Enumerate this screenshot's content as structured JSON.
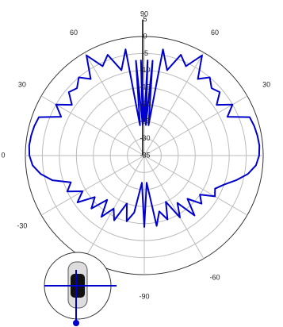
{
  "chart_data": {
    "type": "polar",
    "x": [
      -90,
      -85,
      -80,
      -75,
      -70,
      -65,
      -60,
      -55,
      -50,
      -45,
      -40,
      -35,
      -30,
      -25,
      -20,
      -15,
      -10,
      -5,
      0,
      5,
      10,
      15,
      20,
      25,
      30,
      35,
      40,
      45,
      50,
      55,
      60,
      65,
      70,
      75,
      80,
      82,
      85,
      87,
      88,
      90,
      92,
      93,
      95,
      98,
      100,
      105,
      110,
      115,
      120,
      125,
      130,
      135,
      140,
      145,
      150,
      155,
      160,
      165,
      170,
      175,
      180,
      185,
      190,
      195,
      200,
      205,
      210,
      215,
      220,
      225,
      230,
      235,
      240,
      245,
      250,
      255,
      260,
      265,
      270
    ],
    "series": [
      {
        "color": "#0000cc",
        "values": [
          -14,
          -27,
          -18,
          -15,
          -20,
          -14,
          -17,
          -13,
          -18,
          -13,
          -16,
          -11,
          -14,
          -10,
          -12,
          -7,
          -4,
          -2,
          -1.2,
          -1,
          -1.2,
          -1.5,
          -2,
          -8,
          -5,
          -9,
          -6,
          -7,
          -5,
          -7.5,
          -1,
          -6,
          -3.5,
          -9,
          -3.3,
          -26,
          -7,
          -26,
          -7,
          -25,
          -7,
          -26,
          -7,
          -26,
          -3.3,
          -9,
          -3.5,
          -6,
          -1,
          -7.5,
          -5,
          -7,
          -6,
          -9,
          -5,
          -8,
          -2,
          -1.5,
          -1.2,
          -1,
          -1.2,
          -2,
          -4,
          -7,
          -10,
          -12,
          -11,
          -15,
          -13,
          -17,
          -12,
          -18,
          -14,
          -20,
          -15,
          -18,
          -14,
          -27,
          -14
        ]
      }
    ],
    "rlim": [
      -35,
      0
    ],
    "rticks": [
      -35,
      -30,
      -25,
      -20,
      -15,
      -10,
      -5,
      0,
      5
    ],
    "thetaticks": [
      {
        "value": 90,
        "label": "90"
      },
      {
        "value": 60,
        "label": "60"
      },
      {
        "value": 30,
        "label": "30"
      },
      {
        "value": 0,
        "label": "0"
      },
      {
        "value": -30,
        "label": "-30"
      },
      {
        "value": -60,
        "label": null
      },
      {
        "value": -90,
        "label": "-90"
      },
      {
        "value": -120,
        "label": "-60"
      },
      {
        "value": -150,
        "label": null
      },
      {
        "value": 180,
        "label": null
      },
      {
        "value": 150,
        "label": "30"
      },
      {
        "value": 120,
        "label": "60"
      }
    ],
    "grid": true
  }
}
